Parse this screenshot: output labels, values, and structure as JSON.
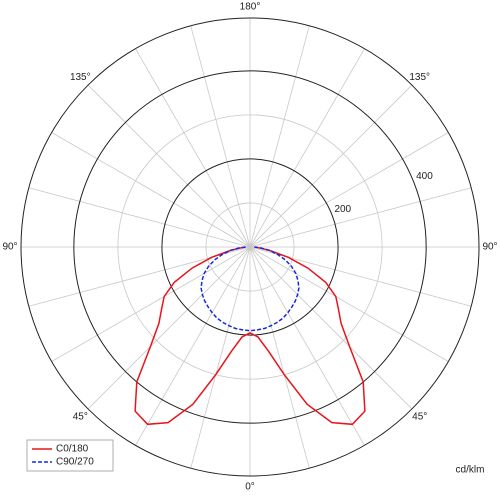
{
  "chart_data": {
    "type": "polar",
    "unit_label": "cd/klm",
    "angles": [
      -90,
      -85,
      -80,
      -75,
      -70,
      -65,
      -60,
      -55,
      -50,
      -45,
      -40,
      -35,
      -30,
      -25,
      -20,
      -15,
      -10,
      -5,
      0,
      5,
      10,
      15,
      20,
      25,
      30,
      35,
      40,
      45,
      50,
      55,
      60,
      65,
      70,
      75,
      80,
      85,
      90
    ],
    "series": [
      {
        "name": "C0/180",
        "color": "#e8141c",
        "dash": "solid",
        "values": [
          10,
          20,
          45,
          90,
          140,
          190,
          225,
          245,
          270,
          320,
          400,
          455,
          465,
          440,
          380,
          300,
          240,
          205,
          195,
          205,
          240,
          300,
          380,
          440,
          465,
          455,
          400,
          320,
          270,
          245,
          225,
          190,
          140,
          90,
          45,
          20,
          10
        ]
      },
      {
        "name": "C90/270",
        "color": "#1428e0",
        "dash": "dashed",
        "values": [
          10,
          25,
          45,
          65,
          85,
          104,
          120,
          133,
          145,
          153,
          160,
          166,
          172,
          178,
          182,
          185,
          188,
          189,
          190,
          189,
          188,
          185,
          182,
          178,
          172,
          166,
          160,
          153,
          145,
          133,
          120,
          104,
          85,
          65,
          45,
          25,
          10
        ]
      }
    ],
    "rlim": [
      0,
      520
    ],
    "rticks": [
      200,
      400
    ],
    "rgrid_minor": [
      100,
      300
    ],
    "angle_ticks": [
      {
        "value": 180,
        "label": "180°"
      },
      {
        "value": -135,
        "label": "135°"
      },
      {
        "value": 135,
        "label": "135°"
      },
      {
        "value": -90,
        "label": "90°"
      },
      {
        "value": 90,
        "label": "90°"
      },
      {
        "value": -45,
        "label": "45°"
      },
      {
        "value": 45,
        "label": "45°"
      },
      {
        "value": 0,
        "label": "0°"
      }
    ],
    "legend": "lower left"
  }
}
